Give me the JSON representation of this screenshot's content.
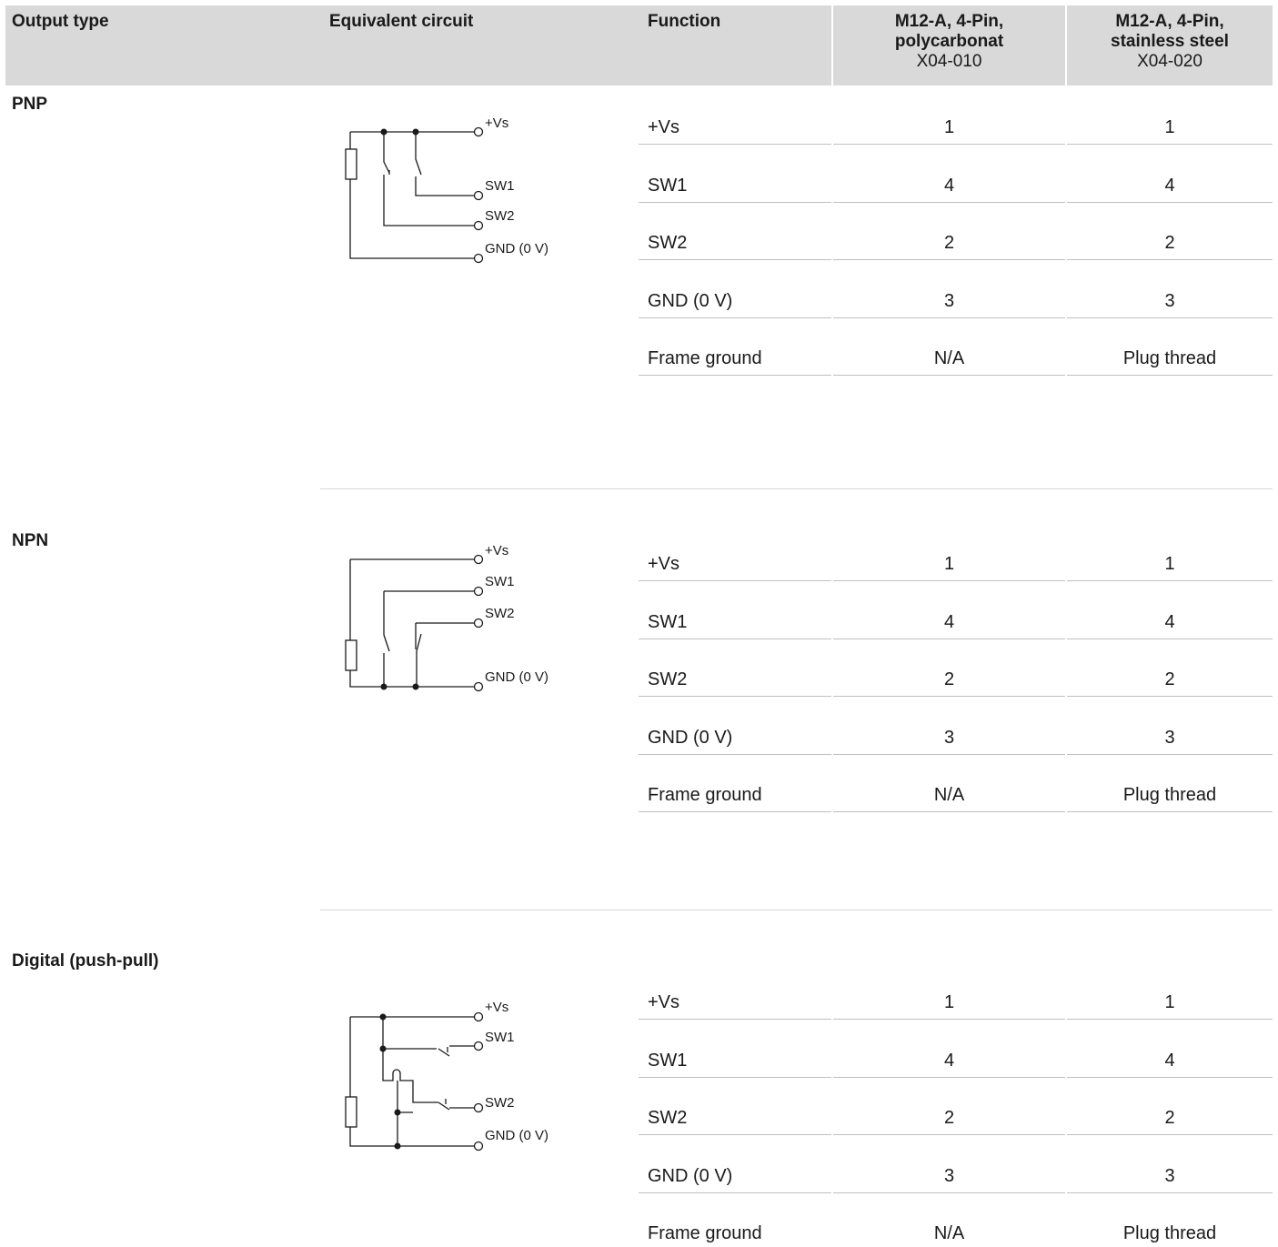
{
  "header": {
    "output_type": "Output type",
    "equivalent_circuit": "Equivalent circuit",
    "function": "Function",
    "col1_line1": "M12-A, 4-Pin,",
    "col1_line2": "polycarbonat",
    "col1_code": "X04-010",
    "col2_line1": "M12-A, 4-Pin,",
    "col2_line2": "stainless steel",
    "col2_code": "X04-020"
  },
  "circuit_labels": {
    "vs": "+Vs",
    "sw1": "SW1",
    "sw2": "SW2",
    "gnd": "GND (0 V)"
  },
  "sections": [
    {
      "label": "PNP",
      "rows": [
        {
          "function": "+Vs",
          "c1": "1",
          "c2": "1"
        },
        {
          "function": "SW1",
          "c1": "4",
          "c2": "4"
        },
        {
          "function": "SW2",
          "c1": "2",
          "c2": "2"
        },
        {
          "function": "GND (0 V)",
          "c1": "3",
          "c2": "3"
        },
        {
          "function": "Frame ground",
          "c1": "N/A",
          "c2": "Plug thread"
        }
      ]
    },
    {
      "label": "NPN",
      "rows": [
        {
          "function": "+Vs",
          "c1": "1",
          "c2": "1"
        },
        {
          "function": "SW1",
          "c1": "4",
          "c2": "4"
        },
        {
          "function": "SW2",
          "c1": "2",
          "c2": "2"
        },
        {
          "function": "GND (0 V)",
          "c1": "3",
          "c2": "3"
        },
        {
          "function": "Frame ground",
          "c1": "N/A",
          "c2": "Plug thread"
        }
      ]
    },
    {
      "label": "Digital (push-pull)",
      "rows": [
        {
          "function": "+Vs",
          "c1": "1",
          "c2": "1"
        },
        {
          "function": "SW1",
          "c1": "4",
          "c2": "4"
        },
        {
          "function": "SW2",
          "c1": "2",
          "c2": "2"
        },
        {
          "function": "GND (0 V)",
          "c1": "3",
          "c2": "3"
        },
        {
          "function": "Frame ground",
          "c1": "N/A",
          "c2": "Plug thread"
        }
      ]
    }
  ]
}
